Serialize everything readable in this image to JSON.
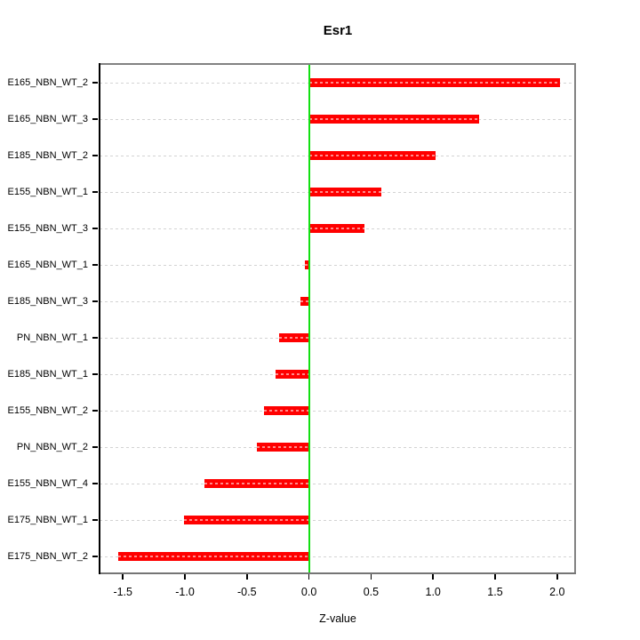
{
  "chart_data": {
    "type": "bar",
    "orientation": "horizontal",
    "title": "Esr1",
    "xlabel": "Z-value",
    "ylabel": "",
    "categories": [
      "E165_NBN_WT_2",
      "E165_NBN_WT_3",
      "E185_NBN_WT_2",
      "E155_NBN_WT_1",
      "E155_NBN_WT_3",
      "E165_NBN_WT_1",
      "E185_NBN_WT_3",
      "PN_NBN_WT_1",
      "E185_NBN_WT_1",
      "E155_NBN_WT_2",
      "PN_NBN_WT_2",
      "E155_NBN_WT_4",
      "E175_NBN_WT_1",
      "E175_NBN_WT_2"
    ],
    "values": [
      2.02,
      1.37,
      1.02,
      0.58,
      0.45,
      -0.03,
      -0.07,
      -0.24,
      -0.27,
      -0.36,
      -0.42,
      -0.84,
      -1.01,
      -1.54
    ],
    "x_ticks": [
      -1.5,
      -1.0,
      -0.5,
      0.0,
      0.5,
      1.0,
      1.5,
      2.0
    ],
    "xlim": [
      -1.695,
      2.152
    ],
    "zero_line_x": 0.0,
    "grid": "horizontal-dashed",
    "legend": "none",
    "colors": {
      "bar": "#FF0000",
      "bar_center_dash": "rgba(255,255,255,0.55)",
      "zero_line": "#12E012",
      "grid": "#D3D3D3",
      "box_border": "#828282",
      "box_bottom": "#757575",
      "axis": "#000000",
      "text": "#000000",
      "background": "#FFFFFF"
    }
  }
}
